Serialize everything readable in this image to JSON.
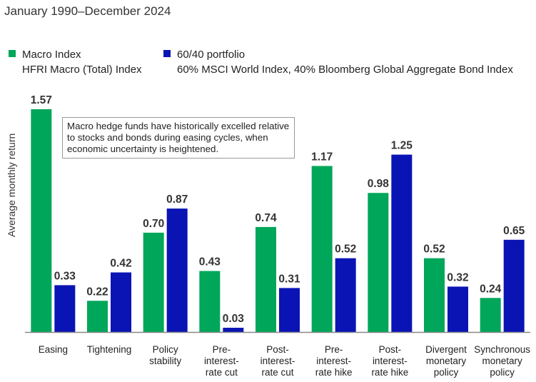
{
  "chart_data": {
    "type": "bar",
    "subtitle": "January 1990–December 2024",
    "ylabel": "Average monthly return",
    "ylim": [
      0,
      1.6
    ],
    "categories": [
      [
        "Easing"
      ],
      [
        "Tightening"
      ],
      [
        "Policy",
        "stability"
      ],
      [
        "Pre-",
        "interest-",
        "rate cut"
      ],
      [
        "Post-",
        "interest-",
        "rate cut"
      ],
      [
        "Pre-",
        "interest-",
        "rate hike"
      ],
      [
        "Post-",
        "interest-",
        "rate hike"
      ],
      [
        "Divergent",
        "monetary",
        "policy"
      ],
      [
        "Synchronous",
        "monetary",
        "policy"
      ]
    ],
    "series": [
      {
        "name": "Macro Index",
        "description": "HFRI Macro (Total) Index",
        "color": "#00a65a",
        "values": [
          1.57,
          0.22,
          0.7,
          0.43,
          0.74,
          1.17,
          0.98,
          0.52,
          0.24
        ],
        "labels": [
          "1.57",
          "0.22",
          "0.70",
          "0.43",
          "0.74",
          "1.17",
          "0.98",
          "0.52",
          "0.24"
        ]
      },
      {
        "name": "60/40 portfolio",
        "description": "60% MSCI World Index, 40% Bloomberg Global Aggregate Bond Index",
        "color": "#0a14b4",
        "values": [
          0.33,
          0.42,
          0.87,
          0.03,
          0.31,
          0.52,
          1.25,
          0.32,
          0.65
        ],
        "labels": [
          "0.33",
          "0.42",
          "0.87",
          "0.03",
          "0.31",
          "0.52",
          "1.25",
          "0.32",
          "0.65"
        ]
      }
    ],
    "annotation": "Macro hedge funds have historically excelled relative to stocks and bonds during easing cycles, when economic uncertainty is heightened.",
    "axis_color": "#888888"
  }
}
